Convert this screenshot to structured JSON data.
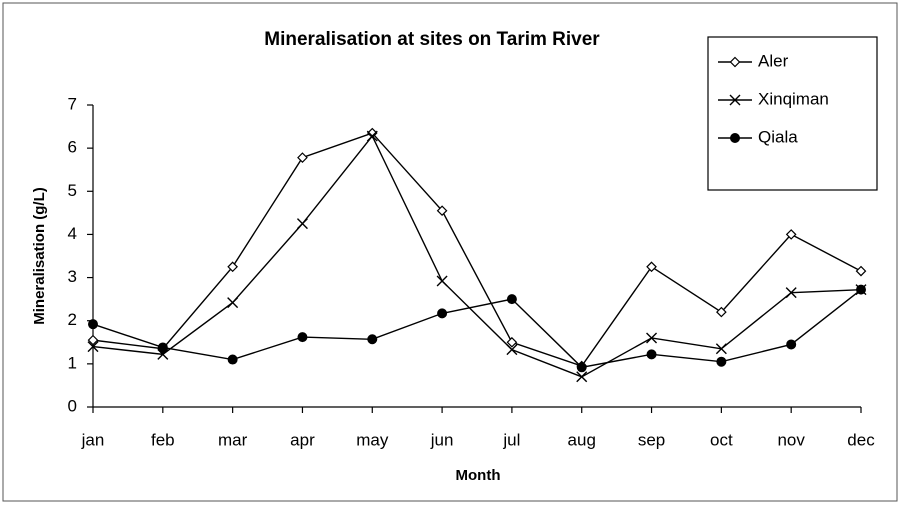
{
  "chart_data": {
    "type": "line",
    "title": "Mineralisation at sites on Tarim River",
    "x_label": "Month",
    "y_label": "Mineralisation (g/L)",
    "categories": [
      "jan",
      "feb",
      "mar",
      "apr",
      "may",
      "jun",
      "jul",
      "aug",
      "sep",
      "oct",
      "nov",
      "dec"
    ],
    "series": [
      {
        "name": "Aler",
        "color": "#000000",
        "marker": "diamond",
        "values": [
          1.55,
          1.35,
          3.25,
          5.78,
          6.35,
          4.55,
          1.5,
          0.95,
          3.25,
          2.2,
          4.0,
          3.15
        ]
      },
      {
        "name": "Xinqiman",
        "color": "#000000",
        "marker": "x",
        "values": [
          1.4,
          1.22,
          2.42,
          4.25,
          6.28,
          2.92,
          1.33,
          0.7,
          1.6,
          1.35,
          2.65,
          2.72
        ]
      },
      {
        "name": "Qiala",
        "color": "#000000",
        "marker": "circle",
        "values": [
          1.92,
          1.38,
          1.1,
          1.62,
          1.57,
          2.17,
          2.5,
          0.92,
          1.22,
          1.05,
          1.45,
          2.72
        ]
      }
    ],
    "ylim": [
      0,
      7
    ],
    "yticks": [
      0,
      1,
      2,
      3,
      4,
      5,
      6,
      7
    ],
    "grid": false,
    "legend": "top-right"
  }
}
